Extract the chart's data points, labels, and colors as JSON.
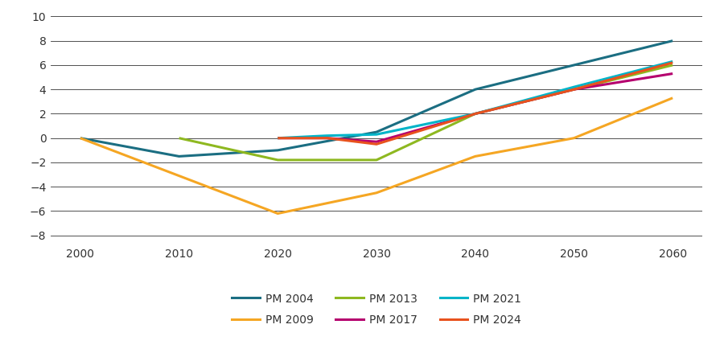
{
  "series": [
    {
      "label": "PM 2004",
      "color": "#1b6e82",
      "x": [
        2000,
        2010,
        2020,
        2030,
        2040,
        2050,
        2060
      ],
      "y": [
        0,
        -1.5,
        -1.0,
        0.5,
        4.0,
        6.0,
        8.0
      ]
    },
    {
      "label": "PM 2009",
      "color": "#f5a623",
      "x": [
        2000,
        2020,
        2030,
        2040,
        2050,
        2060
      ],
      "y": [
        0,
        -6.2,
        -4.5,
        -1.5,
        0.0,
        3.3
      ]
    },
    {
      "label": "PM 2013",
      "color": "#8eb820",
      "x": [
        2010,
        2020,
        2030,
        2040,
        2060
      ],
      "y": [
        0.0,
        -1.8,
        -1.8,
        2.0,
        6.0
      ]
    },
    {
      "label": "PM 2017",
      "color": "#b5006e",
      "x": [
        2020,
        2025,
        2030,
        2040,
        2050,
        2060
      ],
      "y": [
        0.0,
        0.0,
        -0.3,
        2.0,
        4.0,
        5.3
      ]
    },
    {
      "label": "PM 2021",
      "color": "#00b4c8",
      "x": [
        2020,
        2025,
        2030,
        2040,
        2050,
        2060
      ],
      "y": [
        0.0,
        0.2,
        0.3,
        2.0,
        4.2,
        6.3
      ]
    },
    {
      "label": "PM 2024",
      "color": "#e8521e",
      "x": [
        2020,
        2025,
        2030,
        2040,
        2050,
        2060
      ],
      "y": [
        0.0,
        0.0,
        -0.5,
        2.0,
        4.0,
        6.2
      ]
    }
  ],
  "xlim": [
    1997,
    2063
  ],
  "ylim": [
    -8.5,
    10.5
  ],
  "yticks": [
    -8,
    -6,
    -4,
    -2,
    0,
    2,
    4,
    6,
    8,
    10
  ],
  "xticks": [
    2000,
    2010,
    2020,
    2030,
    2040,
    2050,
    2060
  ],
  "linewidth": 2.2,
  "background_color": "#ffffff",
  "grid_color": "#333333",
  "grid_linewidth": 0.6
}
